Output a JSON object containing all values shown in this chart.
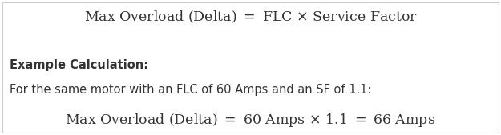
{
  "background_color": "#ffffff",
  "border_color": "#cccccc",
  "formula_line": "Max Overload (Delta) $=$ FLC $\\times$ Service Factor",
  "label_bold": "Example Calculation:",
  "description_line": "For the same motor with an FLC of 60 Amps and an SF of 1.1:",
  "example_line": "Max Overload (Delta) $=$ 60 Amps $\\times$ 1.1 $=$ 66 Amps",
  "formula_fontsize": 12.5,
  "label_fontsize": 10.5,
  "desc_fontsize": 10.5,
  "example_fontsize": 12.5,
  "fig_width": 6.25,
  "fig_height": 1.69,
  "dpi": 100
}
